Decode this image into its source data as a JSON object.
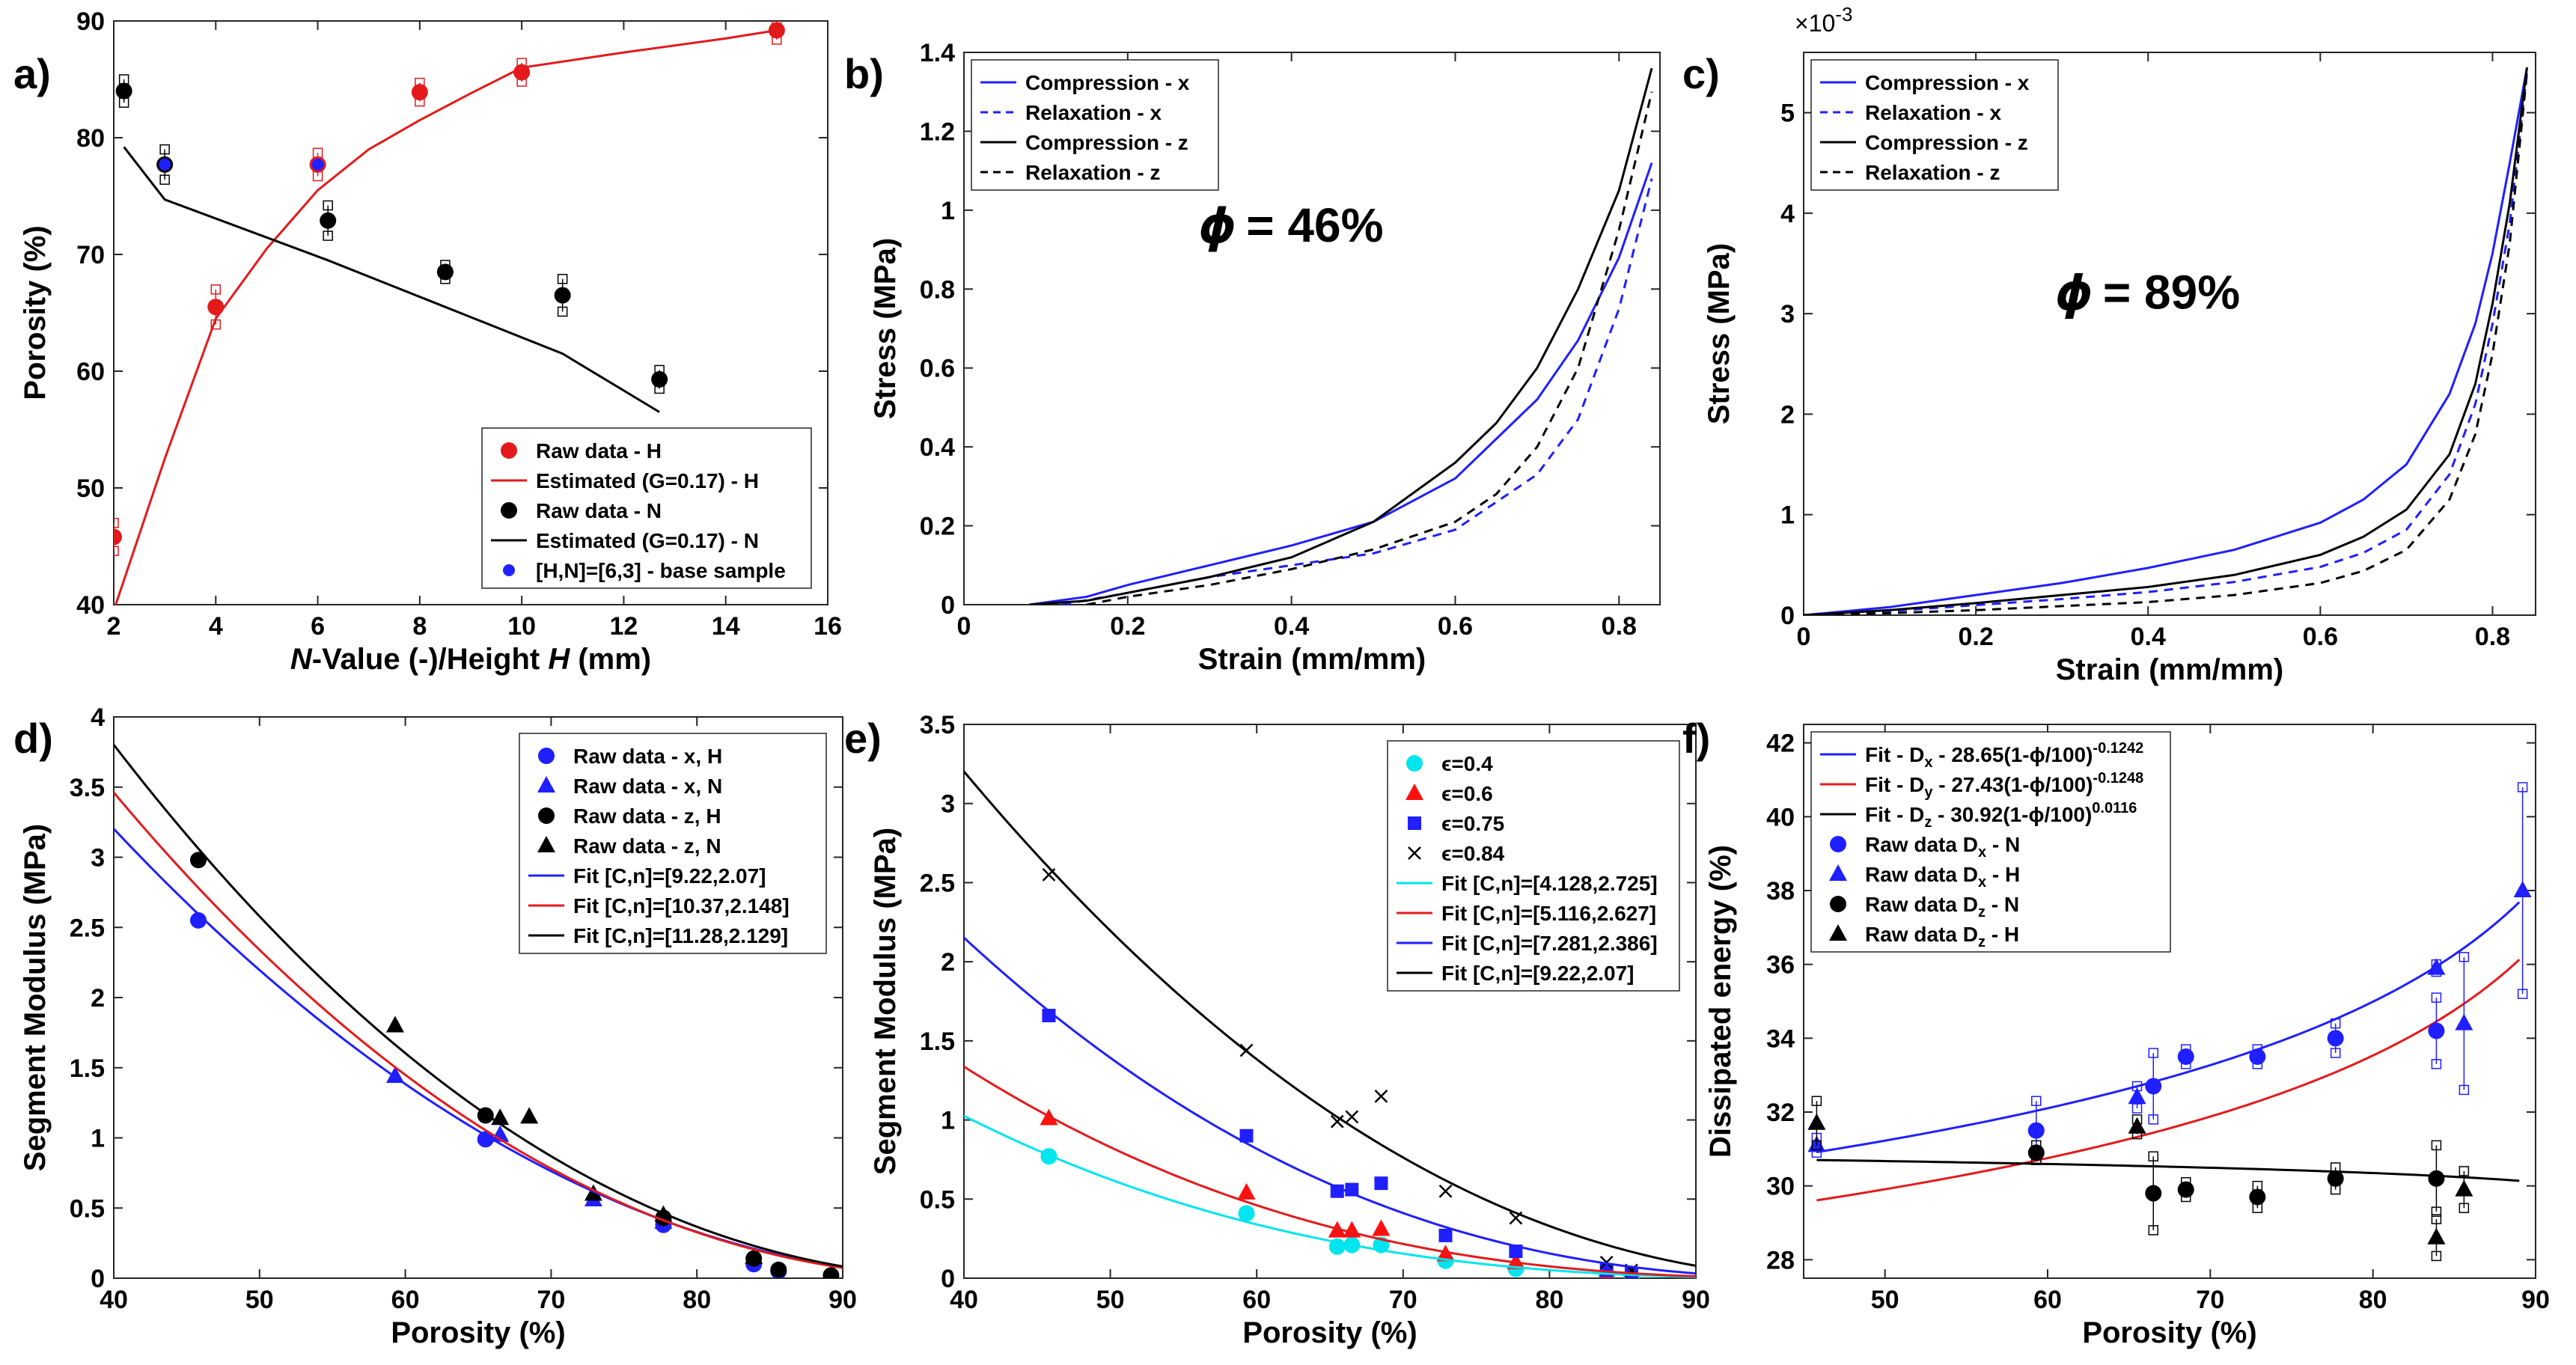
{
  "figure": {
    "panels": [
      {
        "id": "a",
        "label": "a)",
        "xlabel_italic_1": "N",
        "xlabel_mid": "-Value (-)/Height ",
        "xlabel_italic_2": "H",
        "xlabel_end": " (mm)",
        "ylabel": "Porosity (%)",
        "annotation": ""
      },
      {
        "id": "b",
        "label": "b)",
        "xlabel": "Strain (mm/mm)",
        "ylabel": "Stress (MPa)",
        "annotation": "𝝓 = 46%"
      },
      {
        "id": "c",
        "label": "c)",
        "xlabel": "Strain (mm/mm)",
        "ylabel": "Stress (MPa)",
        "annotation": "𝝓 = 89%",
        "exponent": "×10",
        "exponent_power": "-3"
      },
      {
        "id": "d",
        "label": "d)",
        "xlabel": "Porosity (%)",
        "ylabel": "Segment Modulus (MPa)",
        "annotation": ""
      },
      {
        "id": "e",
        "label": "e)",
        "xlabel": "Porosity (%)",
        "ylabel": "Segment Modulus (MPa)",
        "annotation": ""
      },
      {
        "id": "f",
        "label": "f)",
        "xlabel": "Porosity (%)",
        "ylabel": "Dissipated energy (%)",
        "annotation": ""
      }
    ]
  },
  "chart_data": [
    {
      "id": "a",
      "type": "scatter",
      "xlim": [
        2,
        16
      ],
      "ylim": [
        40,
        90
      ],
      "xticks": [
        2,
        4,
        6,
        8,
        10,
        12,
        14,
        16
      ],
      "yticks": [
        40,
        50,
        60,
        70,
        80,
        90
      ],
      "grid": false,
      "legend_placement": "bottom-right",
      "series": [
        {
          "name": "Raw data - H",
          "kind": "points",
          "color": "#e31a1c",
          "marker": "circle",
          "x": [
            2,
            4,
            6,
            8,
            10,
            15
          ],
          "y": [
            45.8,
            65.5,
            77.7,
            83.9,
            85.6,
            89.2
          ],
          "err": [
            1.2,
            1.5,
            1.0,
            0.8,
            0.8,
            0.8
          ]
        },
        {
          "name": "Estimated (G=0.17) - H",
          "kind": "line",
          "color": "#e31a1c",
          "x": [
            2,
            3,
            4,
            5,
            6,
            7,
            8,
            9,
            10,
            12,
            14,
            15
          ],
          "y": [
            39.5,
            52.5,
            64.5,
            70.5,
            75.5,
            79.0,
            81.5,
            83.8,
            86.0,
            87.3,
            88.5,
            89.2
          ]
        },
        {
          "name": "Raw data - N",
          "kind": "points",
          "color": "#000000",
          "marker": "circle",
          "x": [
            2.2,
            3,
            6.2,
            8.5,
            10.8,
            12.7
          ],
          "y": [
            84.0,
            77.7,
            72.9,
            68.5,
            66.5,
            59.3
          ],
          "err": [
            1.0,
            1.3,
            1.3,
            0.6,
            1.4,
            0.8
          ]
        },
        {
          "name": "Estimated (G=0.17) - N",
          "kind": "line",
          "color": "#000000",
          "x": [
            2.2,
            3,
            6.2,
            8.5,
            10.8,
            12.7
          ],
          "y": [
            79.2,
            74.7,
            69.5,
            65.5,
            61.5,
            56.5
          ]
        },
        {
          "name": "[H,N]=[6,3] - base sample",
          "kind": "points",
          "color": "#1f1fff",
          "marker": "dot",
          "x": [
            3,
            6
          ],
          "y": [
            77.7,
            77.7
          ],
          "err": [
            0,
            0
          ]
        }
      ]
    },
    {
      "id": "b",
      "type": "line",
      "xlim": [
        0,
        0.85
      ],
      "ylim": [
        0,
        1.4
      ],
      "xticks": [
        0,
        0.2,
        0.4,
        0.6,
        0.8
      ],
      "yticks": [
        0,
        0.2,
        0.4,
        0.6,
        0.8,
        1,
        1.2,
        1.4
      ],
      "grid": false,
      "legend_placement": "top-left",
      "series": [
        {
          "name": "Compression -  x",
          "color": "#1f1fff",
          "dash": "solid",
          "x": [
            0.08,
            0.15,
            0.2,
            0.3,
            0.4,
            0.5,
            0.6,
            0.7,
            0.75,
            0.8,
            0.84
          ],
          "y": [
            0,
            0.02,
            0.05,
            0.1,
            0.15,
            0.21,
            0.32,
            0.52,
            0.67,
            0.88,
            1.12
          ]
        },
        {
          "name": "Relaxation -  x",
          "color": "#1f1fff",
          "dash": "dashed",
          "x": [
            0.12,
            0.2,
            0.3,
            0.4,
            0.5,
            0.6,
            0.7,
            0.75,
            0.8,
            0.84
          ],
          "y": [
            0,
            0.03,
            0.07,
            0.1,
            0.13,
            0.19,
            0.33,
            0.47,
            0.75,
            1.08
          ]
        },
        {
          "name": "Compression -  z",
          "color": "#000000",
          "dash": "solid",
          "x": [
            0.08,
            0.15,
            0.2,
            0.3,
            0.4,
            0.5,
            0.6,
            0.65,
            0.7,
            0.75,
            0.8,
            0.84
          ],
          "y": [
            0,
            0.01,
            0.03,
            0.07,
            0.12,
            0.21,
            0.36,
            0.46,
            0.6,
            0.8,
            1.05,
            1.36
          ]
        },
        {
          "name": "Relaxation -  z",
          "color": "#000000",
          "dash": "dashed",
          "x": [
            0.15,
            0.2,
            0.3,
            0.4,
            0.5,
            0.6,
            0.65,
            0.7,
            0.75,
            0.8,
            0.84
          ],
          "y": [
            0,
            0.02,
            0.05,
            0.09,
            0.14,
            0.21,
            0.28,
            0.4,
            0.6,
            0.95,
            1.3
          ]
        }
      ]
    },
    {
      "id": "c",
      "type": "line",
      "xlim": [
        0,
        0.85
      ],
      "ylim": [
        0,
        5.6
      ],
      "xticks": [
        0,
        0.2,
        0.4,
        0.6,
        0.8
      ],
      "yticks": [
        0,
        1,
        2,
        3,
        4,
        5
      ],
      "grid": false,
      "legend_placement": "top-left",
      "series": [
        {
          "name": "Compression -  x",
          "color": "#1f1fff",
          "dash": "solid",
          "x": [
            0,
            0.1,
            0.2,
            0.3,
            0.4,
            0.5,
            0.6,
            0.65,
            0.7,
            0.75,
            0.78,
            0.8,
            0.82,
            0.84
          ],
          "y": [
            0,
            0.08,
            0.2,
            0.32,
            0.47,
            0.65,
            0.92,
            1.15,
            1.5,
            2.2,
            2.9,
            3.6,
            4.5,
            5.45
          ]
        },
        {
          "name": "Relaxation -  x",
          "color": "#1f1fff",
          "dash": "dashed",
          "x": [
            0,
            0.1,
            0.2,
            0.3,
            0.4,
            0.5,
            0.6,
            0.65,
            0.7,
            0.75,
            0.78,
            0.8,
            0.82,
            0.84
          ],
          "y": [
            0,
            0.04,
            0.1,
            0.16,
            0.23,
            0.33,
            0.48,
            0.62,
            0.85,
            1.4,
            2.1,
            2.9,
            3.9,
            5.4
          ]
        },
        {
          "name": "Compression -  z",
          "color": "#000000",
          "dash": "solid",
          "x": [
            0,
            0.1,
            0.2,
            0.3,
            0.4,
            0.5,
            0.6,
            0.65,
            0.7,
            0.75,
            0.78,
            0.8,
            0.82,
            0.84
          ],
          "y": [
            0,
            0.05,
            0.12,
            0.2,
            0.28,
            0.4,
            0.6,
            0.78,
            1.05,
            1.6,
            2.3,
            3.1,
            4.1,
            5.45
          ]
        },
        {
          "name": "Relaxation -  z",
          "color": "#000000",
          "dash": "dashed",
          "x": [
            0,
            0.1,
            0.2,
            0.3,
            0.4,
            0.5,
            0.6,
            0.65,
            0.7,
            0.75,
            0.78,
            0.8,
            0.82,
            0.84
          ],
          "y": [
            0,
            0.02,
            0.05,
            0.09,
            0.13,
            0.2,
            0.32,
            0.44,
            0.65,
            1.15,
            1.8,
            2.6,
            3.7,
            5.4
          ]
        }
      ]
    },
    {
      "id": "d",
      "type": "scatter",
      "xlim": [
        40,
        90
      ],
      "ylim": [
        0,
        4
      ],
      "xticks": [
        40,
        50,
        60,
        70,
        80,
        90
      ],
      "yticks": [
        0,
        0.5,
        1,
        1.5,
        2,
        2.5,
        3,
        3.5,
        4
      ],
      "grid": false,
      "legend_placement": "top-right",
      "series": [
        {
          "name": "Raw data -  x, H",
          "kind": "points",
          "color": "#1f1fff",
          "marker": "circle",
          "x": [
            45.8,
            65.5,
            77.7,
            83.9,
            85.6
          ],
          "y": [
            2.55,
            0.99,
            0.38,
            0.1,
            0.05
          ]
        },
        {
          "name": "Raw data -  x, N",
          "kind": "points",
          "color": "#1f1fff",
          "marker": "triangle",
          "x": [
            59.3,
            66.5,
            72.9,
            77.7
          ],
          "y": [
            1.44,
            1.02,
            0.56,
            0.4
          ]
        },
        {
          "name": "Raw data -  z, H",
          "kind": "points",
          "color": "#000000",
          "marker": "circle",
          "x": [
            45.8,
            65.5,
            77.7,
            83.9,
            85.6,
            89.2
          ],
          "y": [
            2.98,
            1.16,
            0.43,
            0.14,
            0.06,
            0.02
          ]
        },
        {
          "name": "Raw data -  z, N",
          "kind": "points",
          "color": "#000000",
          "marker": "triangle",
          "x": [
            59.3,
            66.5,
            68.5,
            72.9,
            77.7,
            83.9
          ],
          "y": [
            1.8,
            1.14,
            1.15,
            0.6,
            0.45,
            0.15
          ]
        },
        {
          "name": "Fit [C,n]=[9.22,2.07]",
          "kind": "fit",
          "color": "#1f1fff",
          "C": 9.22,
          "n": 2.07
        },
        {
          "name": "Fit [C,n]=[10.37,2.148]",
          "kind": "fit",
          "color": "#e31a1c",
          "C": 10.37,
          "n": 2.148
        },
        {
          "name": "Fit [C,n]=[11.28,2.129]",
          "kind": "fit",
          "color": "#000000",
          "C": 11.28,
          "n": 2.129
        }
      ]
    },
    {
      "id": "e",
      "type": "scatter",
      "xlim": [
        40,
        90
      ],
      "ylim": [
        0,
        3.5
      ],
      "xticks": [
        40,
        50,
        60,
        70,
        80,
        90
      ],
      "yticks": [
        0,
        0.5,
        1,
        1.5,
        2,
        2.5,
        3,
        3.5
      ],
      "grid": false,
      "legend_placement": "top-right",
      "series": [
        {
          "name": "ϵ=0.4",
          "kind": "points",
          "color": "#00e5ee",
          "marker": "circle",
          "x": [
            45.8,
            59.3,
            65.5,
            66.5,
            68.5,
            72.9,
            77.7,
            83.9,
            85.6
          ],
          "y": [
            0.77,
            0.41,
            0.2,
            0.21,
            0.21,
            0.11,
            0.06,
            0.02,
            0.01
          ]
        },
        {
          "name": "ϵ=0.6",
          "kind": "points",
          "color": "#ff1010",
          "marker": "triangle",
          "x": [
            45.8,
            59.3,
            65.5,
            66.5,
            68.5,
            72.9,
            77.7,
            83.9,
            85.6
          ],
          "y": [
            1.01,
            0.54,
            0.3,
            0.3,
            0.31,
            0.15,
            0.1,
            0.03,
            0.02
          ]
        },
        {
          "name": "ϵ=0.75",
          "kind": "points",
          "color": "#1f1fff",
          "marker": "square",
          "x": [
            45.8,
            59.3,
            65.5,
            66.5,
            68.5,
            72.9,
            77.7,
            83.9,
            85.6
          ],
          "y": [
            1.66,
            0.9,
            0.55,
            0.56,
            0.6,
            0.27,
            0.17,
            0.05,
            0.03
          ]
        },
        {
          "name": "ϵ=0.84",
          "kind": "points",
          "color": "#000000",
          "marker": "cross",
          "x": [
            45.8,
            59.3,
            65.5,
            66.5,
            68.5,
            72.9,
            77.7,
            83.9,
            85.6
          ],
          "y": [
            2.55,
            1.44,
            0.99,
            1.02,
            1.15,
            0.55,
            0.38,
            0.1,
            0.05
          ]
        },
        {
          "name": "Fit [C,n]=[4.128,2.725]",
          "kind": "fit",
          "color": "#00e5ee",
          "C": 4.128,
          "n": 2.725
        },
        {
          "name": "Fit [C,n]=[5.116,2.627]",
          "kind": "fit",
          "color": "#e31a1c",
          "C": 5.116,
          "n": 2.627
        },
        {
          "name": "Fit [C,n]=[7.281,2.386]",
          "kind": "fit",
          "color": "#1f1fff",
          "C": 7.281,
          "n": 2.386
        },
        {
          "name": "Fit [C,n]=[9.22,2.07]",
          "kind": "fit",
          "color": "#000000",
          "C": 9.22,
          "n": 2.07
        }
      ]
    },
    {
      "id": "f",
      "type": "scatter",
      "xlim": [
        45,
        90
      ],
      "ylim": [
        27.5,
        42.5
      ],
      "xticks": [
        50,
        60,
        70,
        80,
        90
      ],
      "yticks": [
        28,
        30,
        32,
        34,
        36,
        38,
        40,
        42
      ],
      "grid": false,
      "legend_placement": "top-left",
      "series": [
        {
          "name": "Fit - D",
          "sub": "x",
          "rest": " - 28.65(1-ϕ/100)",
          "sup": "-0.1242",
          "kind": "fit",
          "color": "#1f1fff",
          "A": 28.65,
          "b": -0.1242,
          "xrange": [
            45.8,
            89.2
          ]
        },
        {
          "name": "Fit - D",
          "sub": "y",
          "rest": " - 27.43(1-ϕ/100)",
          "sup": "-0.1248",
          "kind": "fit",
          "color": "#e31a1c",
          "A": 27.43,
          "b": -0.1248,
          "xrange": [
            45.8,
            89.2
          ]
        },
        {
          "name": "Fit - D",
          "sub": "z",
          "rest": " - 30.92(1-ϕ/100)",
          "sup": "0.0116",
          "kind": "fit",
          "color": "#000000",
          "A": 30.92,
          "b": 0.0116,
          "xrange": [
            45.8,
            89.2
          ]
        },
        {
          "name": "Raw data D",
          "sub": "x",
          "rest": " - N",
          "kind": "points",
          "color": "#1f1fff",
          "marker": "circle",
          "x": [
            59.3,
            66.5,
            68.5,
            72.9,
            77.7,
            83.9
          ],
          "y": [
            31.5,
            32.7,
            33.5,
            33.5,
            34.0,
            34.2
          ],
          "err": [
            0.8,
            0.9,
            0.2,
            0.2,
            0.4,
            0.9
          ]
        },
        {
          "name": "Raw data D",
          "sub": "x",
          "rest": " - H",
          "kind": "points",
          "color": "#1f1fff",
          "marker": "triangle",
          "x": [
            45.8,
            65.5,
            83.9,
            85.6,
            89.2
          ],
          "y": [
            31.1,
            32.4,
            35.9,
            34.4,
            38.0
          ],
          "err": [
            0.2,
            0.3,
            0.1,
            1.8,
            2.8
          ]
        },
        {
          "name": "Raw data D",
          "sub": "z",
          "rest": " - N",
          "kind": "points",
          "color": "#000000",
          "marker": "circle",
          "x": [
            59.3,
            66.5,
            68.5,
            72.9,
            77.7,
            83.9
          ],
          "y": [
            30.9,
            29.8,
            29.9,
            29.7,
            30.2,
            30.2
          ],
          "err": [
            0.2,
            1.0,
            0.2,
            0.3,
            0.3,
            0.9
          ]
        },
        {
          "name": "Raw data D",
          "sub": "z",
          "rest": " - H",
          "kind": "points",
          "color": "#000000",
          "marker": "triangle",
          "x": [
            45.8,
            65.5,
            83.9,
            85.6
          ],
          "y": [
            31.7,
            31.6,
            28.6,
            29.9
          ],
          "err": [
            0.6,
            0.2,
            0.5,
            0.5
          ]
        }
      ]
    }
  ]
}
